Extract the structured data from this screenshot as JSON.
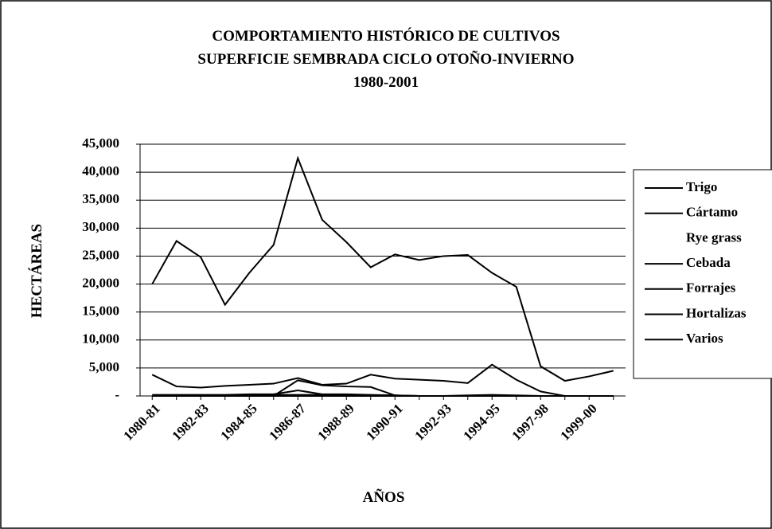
{
  "chart_data": {
    "type": "line",
    "title": [
      "COMPORTAMIENTO HISTÓRICO DE CULTIVOS",
      "SUPERFICIE SEMBRADA CICLO OTOÑO-INVIERNO",
      "1980-2001"
    ],
    "x_label": "AÑOS",
    "y_label": "HECTÁREAS",
    "categories": [
      "1980-81",
      null,
      "1982-83",
      null,
      "1984-85",
      null,
      "1986-87",
      null,
      "1988-89",
      null,
      "1990-91",
      null,
      "1992-93",
      null,
      "1994-95",
      null,
      "1997-98",
      null,
      "1999-00",
      null
    ],
    "series": [
      {
        "name": "Trigo",
        "color": "#000000",
        "values": [
          20000,
          27700,
          24800,
          16300,
          22000,
          27000,
          42500,
          31500,
          27500,
          23000,
          25300,
          24300,
          25000,
          25200,
          22000,
          19500,
          5300,
          2700,
          3500,
          4500
        ]
      },
      {
        "name": "Cártamo",
        "color": "#000000",
        "values": [
          3800,
          1700,
          1500,
          1800,
          2000,
          2200,
          3200,
          2000,
          2200,
          3800,
          3100,
          2900,
          2700,
          2300,
          5600,
          2900,
          800,
          0,
          0,
          0
        ]
      },
      {
        "name": "Rye grass",
        "color": "#ffffff",
        "values": [
          0,
          0,
          0,
          0,
          0,
          0,
          0,
          0,
          0,
          0,
          0,
          0,
          0,
          0,
          0,
          0,
          0,
          0,
          0,
          0
        ]
      },
      {
        "name": "Cebada",
        "color": "#000000",
        "values": [
          0,
          0,
          0,
          0,
          0,
          0,
          2800,
          1900,
          1700,
          1600,
          100,
          0,
          0,
          0,
          0,
          0,
          0,
          0,
          0,
          0
        ]
      },
      {
        "name": "Forrajes",
        "color": "#000000",
        "values": [
          200,
          200,
          200,
          200,
          300,
          300,
          1000,
          300,
          300,
          200,
          100,
          0,
          0,
          100,
          200,
          100,
          0,
          0,
          0,
          0
        ]
      },
      {
        "name": "Hortalizas",
        "color": "#000000",
        "values": [
          0,
          100,
          100,
          100,
          200,
          200,
          200,
          200,
          200,
          100,
          100,
          0,
          0,
          0,
          0,
          0,
          0,
          0,
          0,
          0
        ]
      },
      {
        "name": "Varios",
        "color": "#000000",
        "values": [
          0,
          0,
          0,
          0,
          0,
          0,
          0,
          0,
          0,
          0,
          0,
          0,
          0,
          0,
          0,
          0,
          0,
          0,
          0,
          0
        ]
      }
    ],
    "ylim": [
      0,
      45000
    ],
    "yticks": [
      {
        "value": 0,
        "label": "-"
      },
      {
        "value": 5000,
        "label": "5,000"
      },
      {
        "value": 10000,
        "label": "10,000"
      },
      {
        "value": 15000,
        "label": "15,000"
      },
      {
        "value": 20000,
        "label": "20,000"
      },
      {
        "value": 25000,
        "label": "25,000"
      },
      {
        "value": 30000,
        "label": "30,000"
      },
      {
        "value": 35000,
        "label": "35,000"
      },
      {
        "value": 40000,
        "label": "40,000"
      },
      {
        "value": 45000,
        "label": "45,000"
      }
    ],
    "grid": true,
    "legend": "right"
  }
}
